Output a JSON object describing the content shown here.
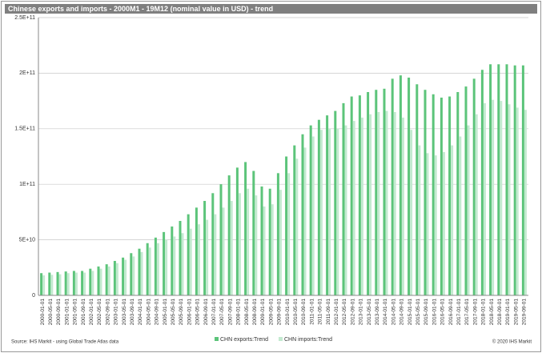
{
  "chart_data": {
    "type": "bar",
    "title": "Chinese exports and imports - 2000M1 - 19M12  (nominal value in USD) - trend",
    "source": "Source: IHS Markit - using Global Trade Atlas data",
    "copyright": "© 2020 IHS Markit",
    "categories": [
      "2000-01-01",
      "2000-05-01",
      "2000-09-01",
      "2001-01-01",
      "2001-05-01",
      "2001-09-01",
      "2002-01-01",
      "2002-05-01",
      "2002-09-01",
      "2003-01-01",
      "2003-05-01",
      "2003-09-01",
      "2004-01-01",
      "2004-05-01",
      "2004-09-01",
      "2005-01-01",
      "2005-05-01",
      "2005-09-01",
      "2006-01-01",
      "2006-05-01",
      "2006-09-01",
      "2007-01-01",
      "2007-05-01",
      "2007-09-01",
      "2008-01-01",
      "2008-05-01",
      "2008-09-01",
      "2009-01-01",
      "2009-05-01",
      "2009-09-01",
      "2010-01-01",
      "2010-05-01",
      "2010-09-01",
      "2011-01-01",
      "2011-05-01",
      "2011-09-01",
      "2012-01-01",
      "2012-05-01",
      "2012-09-01",
      "2013-01-01",
      "2013-05-01",
      "2013-09-01",
      "2014-01-01",
      "2014-05-01",
      "2014-09-01",
      "2015-01-01",
      "2015-05-01",
      "2015-09-01",
      "2016-01-01",
      "2016-05-01",
      "2016-09-01",
      "2017-01-01",
      "2017-05-01",
      "2017-09-01",
      "2018-01-01",
      "2018-05-01",
      "2018-09-01",
      "2019-01-01",
      "2019-05-01",
      "2019-09-01"
    ],
    "series": [
      {
        "name": "CHN exports:Trend",
        "color": "#5cc47a",
        "values": [
          20000000000.0,
          20500000000.0,
          21000000000.0,
          21500000000.0,
          22000000000.0,
          22000000000.0,
          24000000000.0,
          26000000000.0,
          28000000000.0,
          31000000000.0,
          34000000000.0,
          38000000000.0,
          42000000000.0,
          47000000000.0,
          52000000000.0,
          57000000000.0,
          62000000000.0,
          67000000000.0,
          73000000000.0,
          79000000000.0,
          85000000000.0,
          92000000000.0,
          100000000000.0,
          108000000000.0,
          115000000000.0,
          120000000000.0,
          112000000000.0,
          98000000000.0,
          96000000000.0,
          110000000000.0,
          125000000000.0,
          135000000000.0,
          145000000000.0,
          153000000000.0,
          158000000000.0,
          162000000000.0,
          166000000000.0,
          173000000000.0,
          179000000000.0,
          180000000000.0,
          183000000000.0,
          185000000000.0,
          186000000000.0,
          195000000000.0,
          198000000000.0,
          196000000000.0,
          190000000000.0,
          185000000000.0,
          181000000000.0,
          178000000000.0,
          179000000000.0,
          183000000000.0,
          188000000000.0,
          195000000000.0,
          203000000000.0,
          208000000000.0,
          208000000000.0,
          208000000000.0,
          207000000000.0,
          207000000000.0
        ]
      },
      {
        "name": "CHN imports:Trend",
        "color": "#c3ead0",
        "values": [
          18000000000.0,
          18500000000.0,
          19000000000.0,
          20000000000.0,
          20500000000.0,
          20500000000.0,
          22000000000.0,
          24000000000.0,
          26000000000.0,
          29000000000.0,
          32000000000.0,
          35000000000.0,
          39000000000.0,
          43000000000.0,
          47000000000.0,
          50000000000.0,
          53000000000.0,
          56000000000.0,
          60000000000.0,
          64000000000.0,
          68000000000.0,
          73000000000.0,
          79000000000.0,
          85000000000.0,
          92000000000.0,
          96000000000.0,
          90000000000.0,
          80000000000.0,
          82000000000.0,
          95000000000.0,
          110000000000.0,
          123000000000.0,
          133000000000.0,
          143000000000.0,
          149000000000.0,
          150000000000.0,
          150000000000.0,
          153000000000.0,
          157000000000.0,
          160000000000.0,
          163000000000.0,
          165000000000.0,
          166000000000.0,
          165000000000.0,
          160000000000.0,
          149000000000.0,
          135000000000.0,
          128000000000.0,
          126000000000.0,
          129000000000.0,
          135000000000.0,
          143000000000.0,
          153000000000.0,
          163000000000.0,
          173000000000.0,
          176000000000.0,
          175000000000.0,
          172000000000.0,
          169000000000.0,
          167000000000.0
        ]
      }
    ],
    "ylim": [
      0,
      250000000000.0
    ],
    "yticks": [
      0,
      {
        "value": 50000000000.0,
        "label": "5E+10"
      },
      {
        "value": 100000000000.0,
        "label": "1E+11"
      },
      {
        "value": 150000000000.0,
        "label": "1.5E+11"
      },
      {
        "value": 200000000000.0,
        "label": "2E+11"
      },
      {
        "value": 250000000000.0,
        "label": "2.5E+11"
      }
    ],
    "grid": true
  }
}
